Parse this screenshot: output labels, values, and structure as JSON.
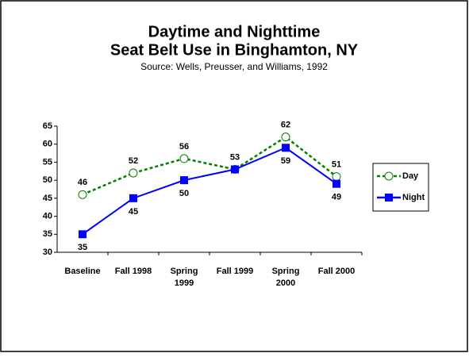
{
  "chart_data": {
    "type": "line",
    "title": [
      "Daytime and Nighttime",
      "Seat Belt Use in Binghamton, NY"
    ],
    "subtitle": "Source: Wells, Preusser, and Williams, 1992",
    "categories": [
      [
        "Baseline"
      ],
      [
        "Fall  1998"
      ],
      [
        "Spring",
        "1999"
      ],
      [
        "Fall  1999"
      ],
      [
        "Spring",
        "2000"
      ],
      [
        "Fall  2000"
      ]
    ],
    "series": [
      {
        "name": "Day",
        "color": "#008000",
        "marker": "open-circle",
        "dash": true,
        "values": [
          46,
          52,
          56,
          53,
          62,
          51
        ]
      },
      {
        "name": "Night",
        "color": "#0000ff",
        "marker": "square",
        "dash": false,
        "values": [
          35,
          45,
          50,
          53,
          59,
          49
        ],
        "value_labels": [
          "35",
          "45",
          "50",
          null,
          "59",
          "49"
        ]
      }
    ],
    "ylim": [
      30,
      65
    ],
    "yticks": [
      30,
      35,
      40,
      45,
      50,
      55,
      60,
      65
    ],
    "legend": "right"
  }
}
